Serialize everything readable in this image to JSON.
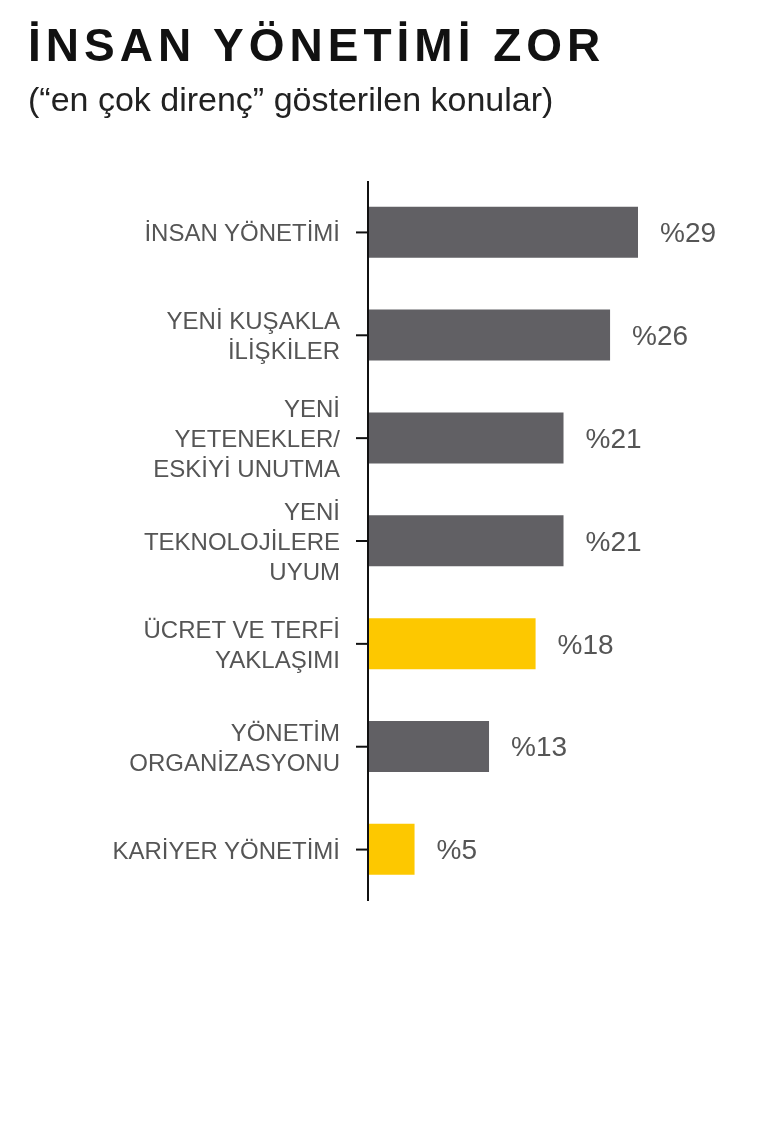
{
  "chart_data": {
    "type": "bar",
    "orientation": "horizontal",
    "title": "İNSAN YÖNETİMİ ZOR",
    "subtitle": "(“en çok direnç” gösterilen konular)",
    "categories": [
      "İNSAN YÖNETİMİ",
      "YENİ KUŞAKLA\nİLİŞKİLER",
      "YENİ\nYETENEKLER/\nESKİYİ UNUTMA",
      "YENİ\nTEKNOLOJİLERE\nUYUM",
      "ÜCRET VE TERFİ\nYAKLAŞIMI",
      "YÖNETİM\nORGANİZASYONU",
      "KARİYER YÖNETİMİ"
    ],
    "values": [
      29,
      26,
      21,
      21,
      18,
      13,
      5
    ],
    "value_labels": [
      "%29",
      "%26",
      "%21",
      "%21",
      "%18",
      "%13",
      "%5"
    ],
    "colors": [
      "#616064",
      "#616064",
      "#616064",
      "#616064",
      "#fdc800",
      "#616064",
      "#fdc800"
    ],
    "grid": false,
    "legend": false
  }
}
